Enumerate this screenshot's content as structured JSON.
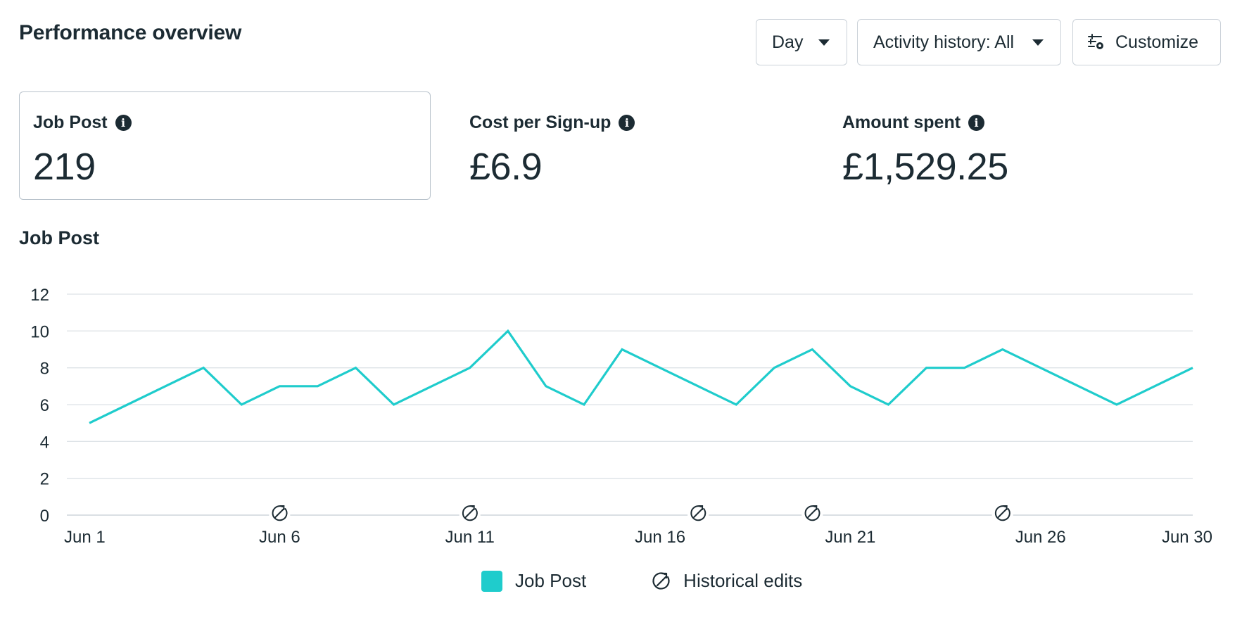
{
  "header": {
    "title": "Performance overview",
    "period_label": "Day",
    "activity_label": "Activity history: All",
    "customize_label": "Customize"
  },
  "metrics": [
    {
      "label": "Job Post",
      "value": "219",
      "selected": true
    },
    {
      "label": "Cost per Sign-up",
      "value": "£6.9",
      "selected": false
    },
    {
      "label": "Amount spent",
      "value": "£1,529.25",
      "selected": false
    }
  ],
  "chart_heading": "Job Post",
  "legend": {
    "series_label": "Job Post",
    "edits_label": "Historical edits"
  },
  "colors": {
    "series": "#1fcccc",
    "text": "#1c2b33",
    "grid": "#dde2e6"
  },
  "chart_data": {
    "type": "line",
    "x": [
      "Jun 1",
      "Jun 2",
      "Jun 3",
      "Jun 4",
      "Jun 5",
      "Jun 6",
      "Jun 7",
      "Jun 8",
      "Jun 9",
      "Jun 10",
      "Jun 11",
      "Jun 12",
      "Jun 13",
      "Jun 14",
      "Jun 15",
      "Jun 16",
      "Jun 17",
      "Jun 18",
      "Jun 19",
      "Jun 20",
      "Jun 21",
      "Jun 22",
      "Jun 23",
      "Jun 24",
      "Jun 25",
      "Jun 26",
      "Jun 27",
      "Jun 28",
      "Jun 29",
      "Jun 30"
    ],
    "series": [
      {
        "name": "Job Post",
        "values": [
          5,
          6,
          7,
          8,
          6,
          7,
          7,
          8,
          6,
          7,
          8,
          10,
          7,
          6,
          9,
          8,
          7,
          6,
          8,
          9,
          7,
          6,
          8,
          8,
          9,
          8,
          7,
          6,
          7,
          8
        ]
      }
    ],
    "x_tick_labels": [
      "Jun 1",
      "Jun 6",
      "Jun 11",
      "Jun 16",
      "Jun 21",
      "Jun 26",
      "Jun 30"
    ],
    "y_ticks": [
      0,
      2,
      4,
      6,
      8,
      10,
      12
    ],
    "ylim": [
      0,
      12
    ],
    "historical_edits": [
      "Jun 6",
      "Jun 11",
      "Jun 17",
      "Jun 20",
      "Jun 25"
    ],
    "grid": true,
    "legend_position": "bottom-center"
  }
}
